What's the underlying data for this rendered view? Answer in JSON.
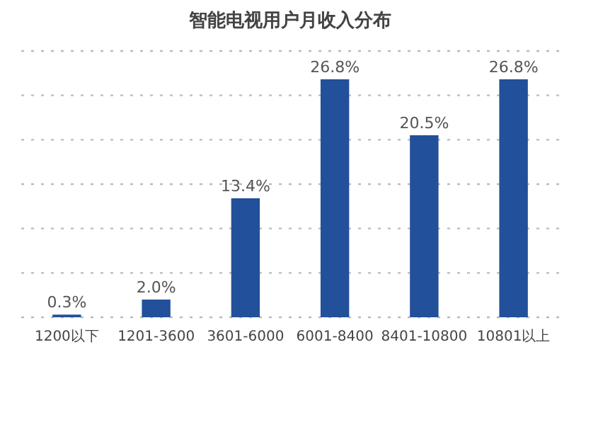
{
  "chart_data": {
    "type": "bar",
    "title": "智能电视用户月收入分布",
    "categories": [
      "1200以下",
      "1201-3600",
      "3601-6000",
      "6001-8400",
      "8401-10800",
      "10801以上"
    ],
    "values": [
      0.3,
      2.0,
      13.4,
      26.8,
      20.5,
      26.8
    ],
    "value_labels": [
      "0.3%",
      "2.0%",
      "13.4%",
      "26.8%",
      "20.5%",
      "26.8%"
    ],
    "color": "#22509a",
    "ylim": [
      0,
      30
    ],
    "yticks": [
      {
        "value": 0,
        "label": null
      },
      {
        "value": 5,
        "label": null
      },
      {
        "value": 10,
        "label": null
      },
      {
        "value": 15,
        "label": null
      },
      {
        "value": 20,
        "label": null
      },
      {
        "value": 25,
        "label": null
      },
      {
        "value": 30,
        "label": null
      }
    ],
    "tick_labels": "x",
    "grid": "y",
    "line_style": "dotted"
  }
}
